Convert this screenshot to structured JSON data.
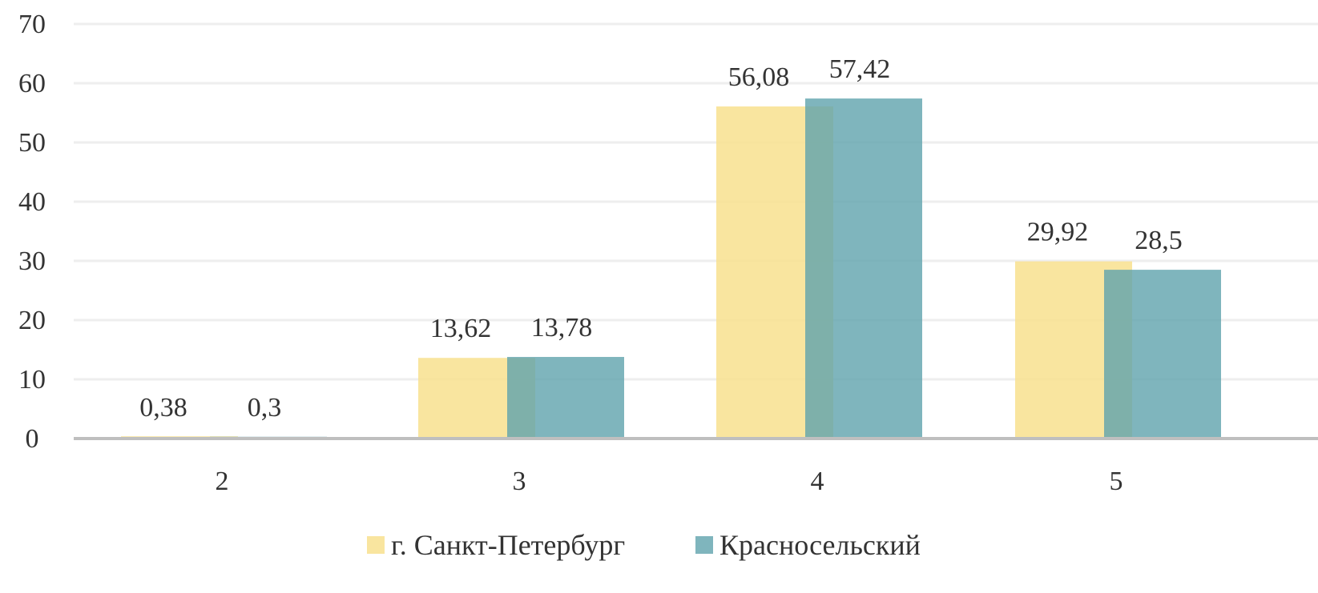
{
  "chart_data": {
    "type": "bar",
    "title": "",
    "xlabel": "",
    "ylabel": "",
    "categories": [
      "2",
      "3",
      "4",
      "5"
    ],
    "ylim": [
      0,
      70
    ],
    "yticks": [
      0,
      10,
      20,
      30,
      40,
      50,
      60,
      70
    ],
    "grid": true,
    "legend_position": "bottom",
    "series": [
      {
        "name": "г. Санкт-Петербург",
        "values": [
          0.38,
          13.62,
          56.08,
          29.92
        ],
        "labels": [
          "0,38",
          "13,62",
          "56,08",
          "29,92"
        ],
        "color": "#F8E08E"
      },
      {
        "name": "Красносельский",
        "values": [
          0.3,
          13.78,
          57.42,
          28.5
        ],
        "labels": [
          "0,3",
          "13,78",
          "57,42",
          "28,5"
        ],
        "color": "#5FA3AC"
      }
    ]
  }
}
